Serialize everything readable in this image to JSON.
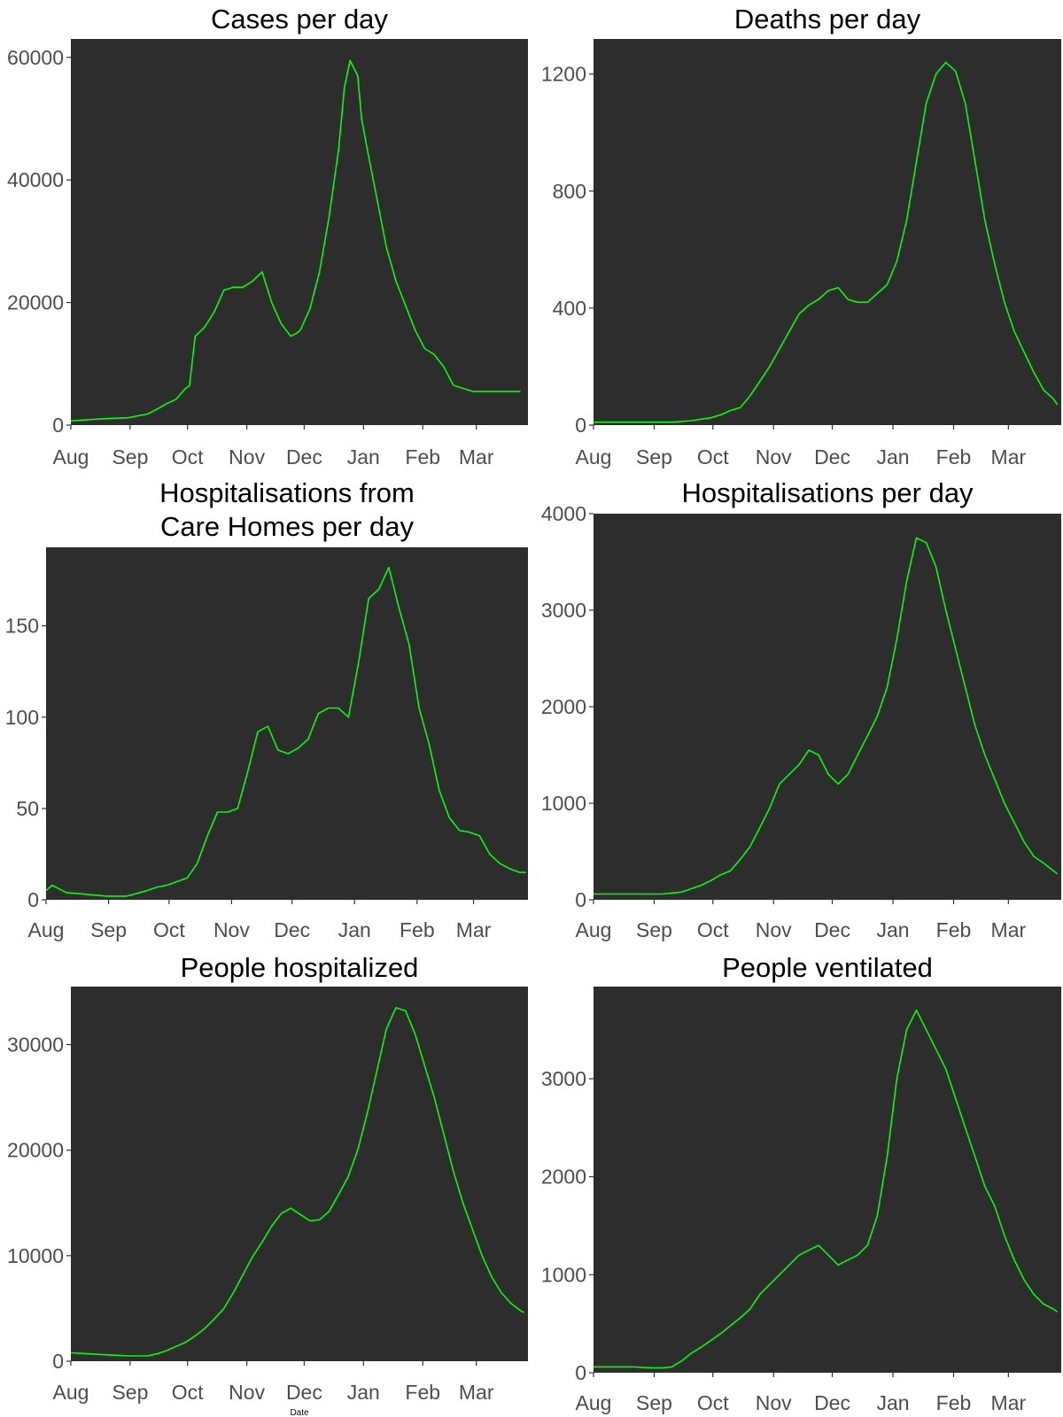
{
  "figure": {
    "xlabel": "Date",
    "line_color": "#00ff00",
    "panel_bg": "#2d2d2d"
  },
  "chart_data": [
    {
      "type": "line",
      "title": [
        "Cases per day"
      ],
      "x_ticks": [
        "Aug",
        "Sep",
        "Oct",
        "Nov",
        "Dec",
        "Jan",
        "Feb",
        "Mar"
      ],
      "y_ticks": [
        0,
        20000,
        40000,
        60000
      ],
      "ylim": [
        0,
        63000
      ],
      "series": [
        {
          "color": "#00ff00",
          "x": [
            0,
            10,
            20,
            30,
            40,
            45,
            50,
            55,
            60,
            62,
            65,
            70,
            75,
            80,
            85,
            90,
            95,
            100,
            105,
            110,
            115,
            118,
            120,
            125,
            130,
            135,
            140,
            143,
            146,
            150,
            152,
            155,
            160,
            165,
            170,
            175,
            180,
            185,
            190,
            195,
            200,
            210,
            215,
            225,
            235
          ],
          "y": [
            700,
            900,
            1100,
            1200,
            1800,
            2600,
            3500,
            4200,
            6000,
            6400,
            14500,
            16000,
            18500,
            22000,
            22500,
            22500,
            23500,
            25000,
            20000,
            16500,
            14500,
            15000,
            15500,
            19000,
            25000,
            34000,
            45000,
            55000,
            59500,
            57000,
            50000,
            45000,
            37000,
            29000,
            23500,
            19500,
            15500,
            12500,
            11500,
            9500,
            6500,
            5500,
            5500,
            5500,
            5500
          ]
        }
      ]
    },
    {
      "type": "line",
      "title": [
        "Deaths per day"
      ],
      "x_ticks": [
        "Aug",
        "Sep",
        "Oct",
        "Nov",
        "Dec",
        "Jan",
        "Feb",
        "Mar"
      ],
      "y_ticks": [
        0,
        400,
        800,
        1200
      ],
      "ylim": [
        0,
        1320
      ],
      "series": [
        {
          "color": "#00ff00",
          "x": [
            0,
            20,
            40,
            50,
            60,
            65,
            70,
            75,
            80,
            85,
            90,
            95,
            100,
            105,
            110,
            115,
            120,
            125,
            130,
            135,
            140,
            145,
            150,
            155,
            160,
            165,
            170,
            175,
            180,
            185,
            190,
            195,
            200,
            205,
            210,
            215,
            220,
            225,
            230,
            235,
            237
          ],
          "y": [
            10,
            10,
            10,
            15,
            25,
            35,
            50,
            60,
            100,
            150,
            200,
            260,
            320,
            380,
            410,
            430,
            460,
            470,
            430,
            420,
            420,
            450,
            480,
            560,
            700,
            900,
            1100,
            1200,
            1240,
            1210,
            1100,
            900,
            700,
            550,
            420,
            320,
            250,
            180,
            120,
            90,
            70
          ]
        }
      ]
    },
    {
      "type": "line",
      "title": [
        "Hospitalisations from",
        "Care Homes per day"
      ],
      "x_ticks": [
        "Aug",
        "Sep",
        "Oct",
        "Nov",
        "Dec",
        "Jan",
        "Feb",
        "Mar"
      ],
      "y_ticks": [
        0,
        50,
        100,
        150
      ],
      "ylim": [
        0,
        193
      ],
      "series": [
        {
          "color": "#00ff00",
          "x": [
            0,
            3,
            10,
            20,
            30,
            40,
            50,
            55,
            60,
            65,
            70,
            75,
            80,
            85,
            90,
            95,
            100,
            105,
            110,
            115,
            120,
            125,
            130,
            135,
            140,
            145,
            150,
            155,
            160,
            165,
            170,
            175,
            180,
            185,
            190,
            195,
            200,
            205,
            210,
            215,
            220,
            225,
            230,
            235,
            238
          ],
          "y": [
            5,
            8,
            4,
            3,
            2,
            2,
            5,
            7,
            8,
            10,
            12,
            20,
            35,
            48,
            48,
            50,
            70,
            92,
            95,
            82,
            80,
            83,
            88,
            102,
            105,
            105,
            100,
            130,
            165,
            170,
            182,
            160,
            140,
            105,
            85,
            60,
            45,
            38,
            37,
            35,
            25,
            20,
            17,
            15,
            15
          ]
        }
      ]
    },
    {
      "type": "line",
      "title": [
        "Hospitalisations per day"
      ],
      "x_ticks": [
        "Aug",
        "Sep",
        "Oct",
        "Nov",
        "Dec",
        "Jan",
        "Feb",
        "Mar"
      ],
      "y_ticks": [
        0,
        1000,
        2000,
        3000,
        4000
      ],
      "ylim": [
        0,
        4000
      ],
      "series": [
        {
          "color": "#00ff00",
          "x": [
            0,
            20,
            35,
            45,
            55,
            60,
            65,
            70,
            75,
            80,
            85,
            90,
            95,
            100,
            105,
            110,
            115,
            120,
            125,
            130,
            135,
            140,
            145,
            150,
            155,
            160,
            165,
            170,
            175,
            180,
            185,
            190,
            195,
            200,
            205,
            210,
            215,
            220,
            225,
            230,
            235,
            237
          ],
          "y": [
            60,
            60,
            60,
            80,
            150,
            200,
            260,
            300,
            420,
            550,
            750,
            950,
            1200,
            1300,
            1400,
            1550,
            1500,
            1300,
            1200,
            1300,
            1500,
            1700,
            1900,
            2200,
            2700,
            3300,
            3750,
            3700,
            3450,
            3000,
            2600,
            2200,
            1800,
            1500,
            1250,
            1000,
            800,
            600,
            450,
            380,
            300,
            270
          ]
        }
      ]
    },
    {
      "type": "line",
      "title": [
        "People hospitalized"
      ],
      "x_ticks": [
        "Aug",
        "Sep",
        "Oct",
        "Nov",
        "Dec",
        "Jan",
        "Feb",
        "Mar"
      ],
      "y_ticks": [
        0,
        10000,
        20000,
        30000
      ],
      "ylim": [
        0,
        35500
      ],
      "series": [
        {
          "color": "#00ff00",
          "x": [
            0,
            10,
            20,
            30,
            40,
            45,
            50,
            55,
            60,
            65,
            70,
            75,
            80,
            85,
            90,
            95,
            100,
            105,
            110,
            115,
            120,
            125,
            130,
            135,
            140,
            145,
            150,
            155,
            160,
            165,
            170,
            175,
            180,
            185,
            190,
            195,
            200,
            205,
            210,
            215,
            220,
            225,
            230,
            235,
            237
          ],
          "y": [
            800,
            700,
            600,
            500,
            500,
            700,
            1000,
            1400,
            1800,
            2400,
            3100,
            4000,
            5000,
            6500,
            8200,
            9900,
            11300,
            12800,
            14000,
            14500,
            13900,
            13300,
            13400,
            14200,
            15800,
            17500,
            20000,
            23500,
            27500,
            31500,
            33500,
            33200,
            31000,
            28000,
            25000,
            21500,
            18000,
            15000,
            12500,
            10000,
            8000,
            6500,
            5500,
            4800,
            4600
          ]
        }
      ]
    },
    {
      "type": "line",
      "title": [
        "People ventilated"
      ],
      "x_ticks": [
        "Aug",
        "Sep",
        "Oct",
        "Nov",
        "Dec",
        "Jan",
        "Feb",
        "Mar"
      ],
      "y_ticks": [
        0,
        1000,
        2000,
        3000
      ],
      "ylim": [
        0,
        3940
      ],
      "series": [
        {
          "color": "#00ff00",
          "x": [
            0,
            10,
            20,
            30,
            35,
            40,
            45,
            50,
            55,
            60,
            65,
            70,
            75,
            80,
            85,
            90,
            95,
            100,
            105,
            110,
            115,
            120,
            125,
            130,
            135,
            140,
            145,
            150,
            155,
            160,
            165,
            170,
            175,
            180,
            185,
            190,
            195,
            200,
            205,
            210,
            215,
            220,
            225,
            230,
            235,
            237
          ],
          "y": [
            60,
            60,
            60,
            50,
            50,
            60,
            120,
            200,
            260,
            330,
            400,
            480,
            560,
            650,
            800,
            900,
            1000,
            1100,
            1200,
            1250,
            1300,
            1200,
            1100,
            1150,
            1200,
            1300,
            1600,
            2200,
            3000,
            3500,
            3700,
            3500,
            3300,
            3100,
            2800,
            2500,
            2200,
            1900,
            1700,
            1400,
            1150,
            950,
            800,
            700,
            650,
            620
          ]
        }
      ]
    }
  ]
}
